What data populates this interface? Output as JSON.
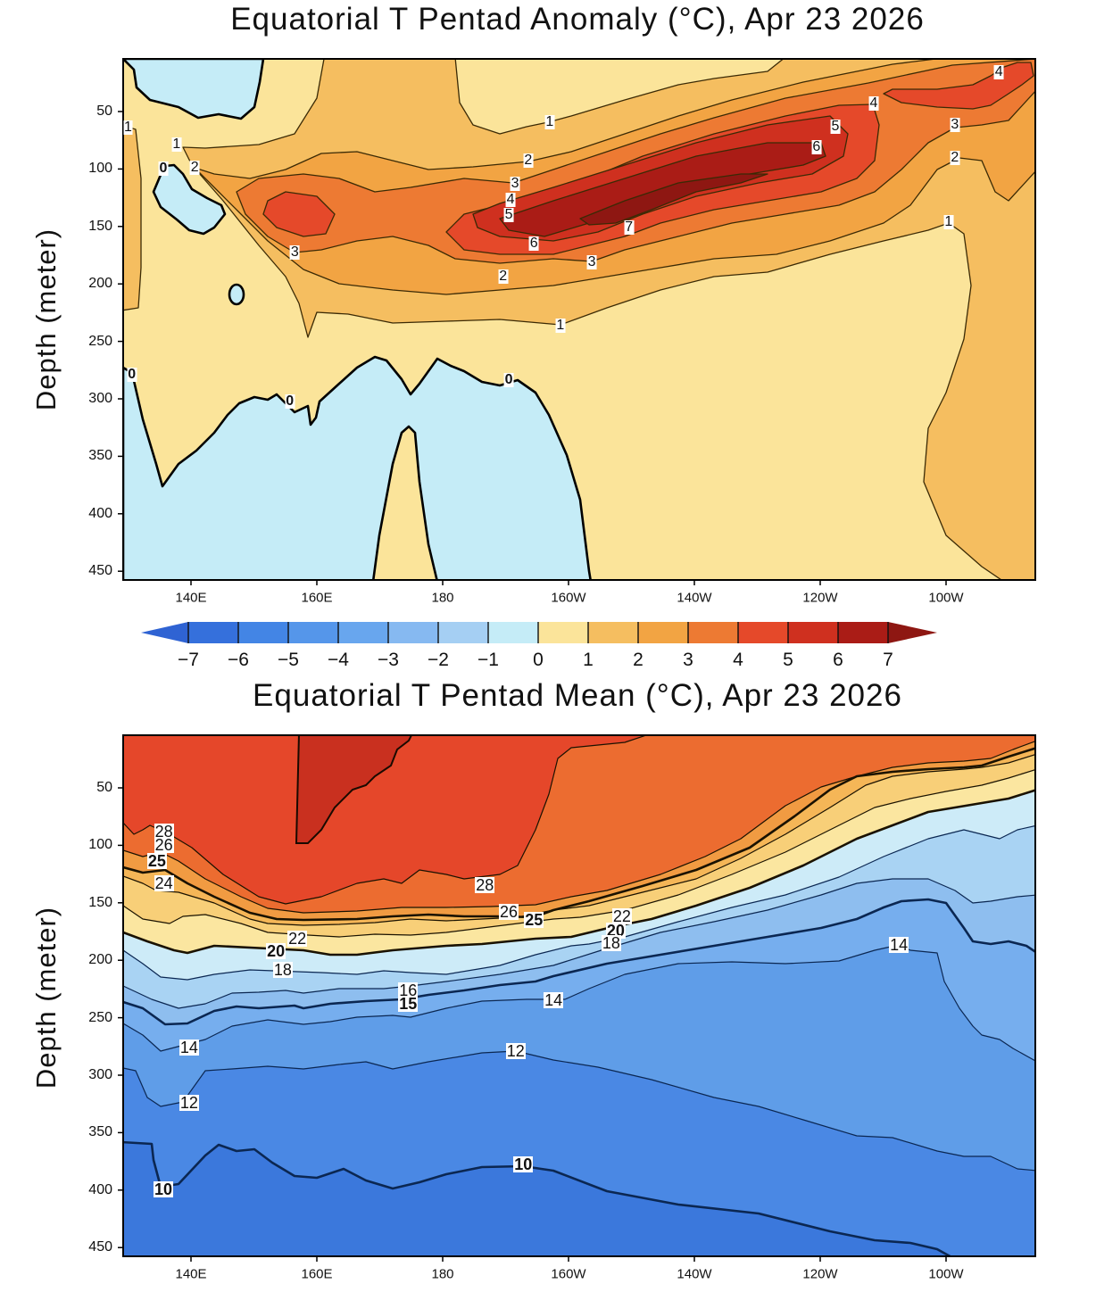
{
  "chart_data": [
    {
      "type": "heatmap",
      "title": "Equatorial T Pentad Anomaly (°C), Apr 23 2026",
      "ylabel": "Depth (meter)",
      "xlabel": "",
      "x_ticks": [
        {
          "lon": 140,
          "label": "140E"
        },
        {
          "lon": 160,
          "label": "160E"
        },
        {
          "lon": 180,
          "label": "180"
        },
        {
          "lon": 200,
          "label": "160W"
        },
        {
          "lon": 220,
          "label": "140W"
        },
        {
          "lon": 240,
          "label": "120W"
        },
        {
          "lon": 260,
          "label": "100W"
        }
      ],
      "y_ticks": [
        50,
        100,
        150,
        200,
        250,
        300,
        350,
        400,
        450
      ],
      "xlim_lon_east": [
        129,
        275
      ],
      "ylim_depth": [
        5,
        458
      ],
      "y_inverted": true,
      "contour_levels": [
        -7,
        -6,
        -5,
        -4,
        -3,
        -2,
        -1,
        0,
        1,
        2,
        3,
        4,
        5,
        6,
        7
      ],
      "colorbar": {
        "labels": [
          "−7",
          "−6",
          "−5",
          "−4",
          "−3",
          "−2",
          "−1",
          "0",
          "1",
          "2",
          "3",
          "4",
          "5",
          "6",
          "7"
        ],
        "colors": [
          "#2f63d3",
          "#3570dc",
          "#4385e5",
          "#5596ea",
          "#68a6ee",
          "#86b9f1",
          "#a5cff3",
          "#c5ecf7",
          "#fbe49a",
          "#f5be60",
          "#f2a443",
          "#ed7a33",
          "#e5492a",
          "#cf301f",
          "#aa1c16",
          "#8e1712"
        ]
      },
      "max_anomaly_region": {
        "lon_east": [
          200,
          230
        ],
        "depth": [
          120,
          160
        ],
        "value_above": 7
      },
      "contour_labels": [
        {
          "value": "1",
          "lon": 130,
          "depth": 64
        },
        {
          "value": "1",
          "lon": 197,
          "depth": 59
        },
        {
          "value": "1",
          "lon": 137.7,
          "depth": 79
        },
        {
          "value": "0",
          "lon": 135.6,
          "depth": 100,
          "bold": true
        },
        {
          "value": "2",
          "lon": 140.6,
          "depth": 99
        },
        {
          "value": "2",
          "lon": 193.6,
          "depth": 93
        },
        {
          "value": "3",
          "lon": 191.5,
          "depth": 113
        },
        {
          "value": "4",
          "lon": 190.8,
          "depth": 127
        },
        {
          "value": "5",
          "lon": 190.5,
          "depth": 140
        },
        {
          "value": "6",
          "lon": 194.5,
          "depth": 165
        },
        {
          "value": "7",
          "lon": 209.6,
          "depth": 151
        },
        {
          "value": "3",
          "lon": 156.5,
          "depth": 173
        },
        {
          "value": "3",
          "lon": 203.7,
          "depth": 181
        },
        {
          "value": "2",
          "lon": 189.6,
          "depth": 194
        },
        {
          "value": "1",
          "lon": 198.7,
          "depth": 236
        },
        {
          "value": "1",
          "lon": 260.4,
          "depth": 146
        },
        {
          "value": "2",
          "lon": 261.4,
          "depth": 90
        },
        {
          "value": "3",
          "lon": 261.4,
          "depth": 62
        },
        {
          "value": "4",
          "lon": 248.5,
          "depth": 43
        },
        {
          "value": "5",
          "lon": 242.4,
          "depth": 63
        },
        {
          "value": "6",
          "lon": 239.4,
          "depth": 81
        },
        {
          "value": "4",
          "lon": 268.4,
          "depth": 16
        },
        {
          "value": "0",
          "lon": 130.6,
          "depth": 279,
          "bold": true
        },
        {
          "value": "0",
          "lon": 155.7,
          "depth": 302,
          "bold": true
        },
        {
          "value": "0",
          "lon": 190.5,
          "depth": 284,
          "bold": true
        }
      ]
    },
    {
      "type": "heatmap",
      "title": "Equatorial T Pentad Mean (°C), Apr 23 2026",
      "ylabel": "Depth (meter)",
      "xlabel": "",
      "x_ticks": [
        {
          "lon": 140,
          "label": "140E"
        },
        {
          "lon": 160,
          "label": "160E"
        },
        {
          "lon": 180,
          "label": "180"
        },
        {
          "lon": 200,
          "label": "160W"
        },
        {
          "lon": 220,
          "label": "140W"
        },
        {
          "lon": 240,
          "label": "120W"
        },
        {
          "lon": 260,
          "label": "100W"
        }
      ],
      "y_ticks": [
        50,
        100,
        150,
        200,
        250,
        300,
        350,
        400,
        450
      ],
      "xlim_lon_east": [
        129,
        275
      ],
      "ylim_depth": [
        5,
        458
      ],
      "y_inverted": true,
      "contour_levels": [
        10,
        12,
        14,
        15,
        16,
        18,
        20,
        22,
        24,
        25,
        26,
        28,
        29
      ],
      "band_colors": {
        "below_10": "#3b78dc",
        "10_12": "#4a88e4",
        "12_14": "#5f9de8",
        "14_15": "#76aeee",
        "15_16": "#8ebeef",
        "16_18": "#a9d3f3",
        "18_20": "#cdebf8",
        "20_22": "#fbe6a0",
        "22_24": "#f8cf78",
        "24_25": "#f5b657",
        "25_26": "#f19b42",
        "26_28": "#ec6c30",
        "28_29": "#e5472a",
        "above_29": "#c9301f"
      },
      "contour_labels": [
        {
          "value": "28",
          "lon": 135.7,
          "depth": 88
        },
        {
          "value": "26",
          "lon": 135.7,
          "depth": 100
        },
        {
          "value": "25",
          "lon": 134.6,
          "depth": 114,
          "bold": true
        },
        {
          "value": "24",
          "lon": 135.7,
          "depth": 133
        },
        {
          "value": "28",
          "lon": 186.7,
          "depth": 135
        },
        {
          "value": "26",
          "lon": 190.5,
          "depth": 158
        },
        {
          "value": "25",
          "lon": 194.5,
          "depth": 165,
          "bold": true
        },
        {
          "value": "22",
          "lon": 208.5,
          "depth": 162
        },
        {
          "value": "20",
          "lon": 207.5,
          "depth": 174,
          "bold": true
        },
        {
          "value": "18",
          "lon": 206.8,
          "depth": 185
        },
        {
          "value": "22",
          "lon": 156.9,
          "depth": 181
        },
        {
          "value": "20",
          "lon": 153.5,
          "depth": 192,
          "bold": true
        },
        {
          "value": "18",
          "lon": 154.6,
          "depth": 208
        },
        {
          "value": "16",
          "lon": 174.5,
          "depth": 226
        },
        {
          "value": "15",
          "lon": 174.5,
          "depth": 238,
          "bold": true
        },
        {
          "value": "14",
          "lon": 197.6,
          "depth": 235
        },
        {
          "value": "14",
          "lon": 252.5,
          "depth": 187
        },
        {
          "value": "14",
          "lon": 139.7,
          "depth": 276
        },
        {
          "value": "12",
          "lon": 191.6,
          "depth": 279
        },
        {
          "value": "12",
          "lon": 139.7,
          "depth": 324
        },
        {
          "value": "10",
          "lon": 192.8,
          "depth": 378,
          "bold": true
        },
        {
          "value": "10",
          "lon": 135.6,
          "depth": 399,
          "bold": true
        }
      ]
    }
  ]
}
